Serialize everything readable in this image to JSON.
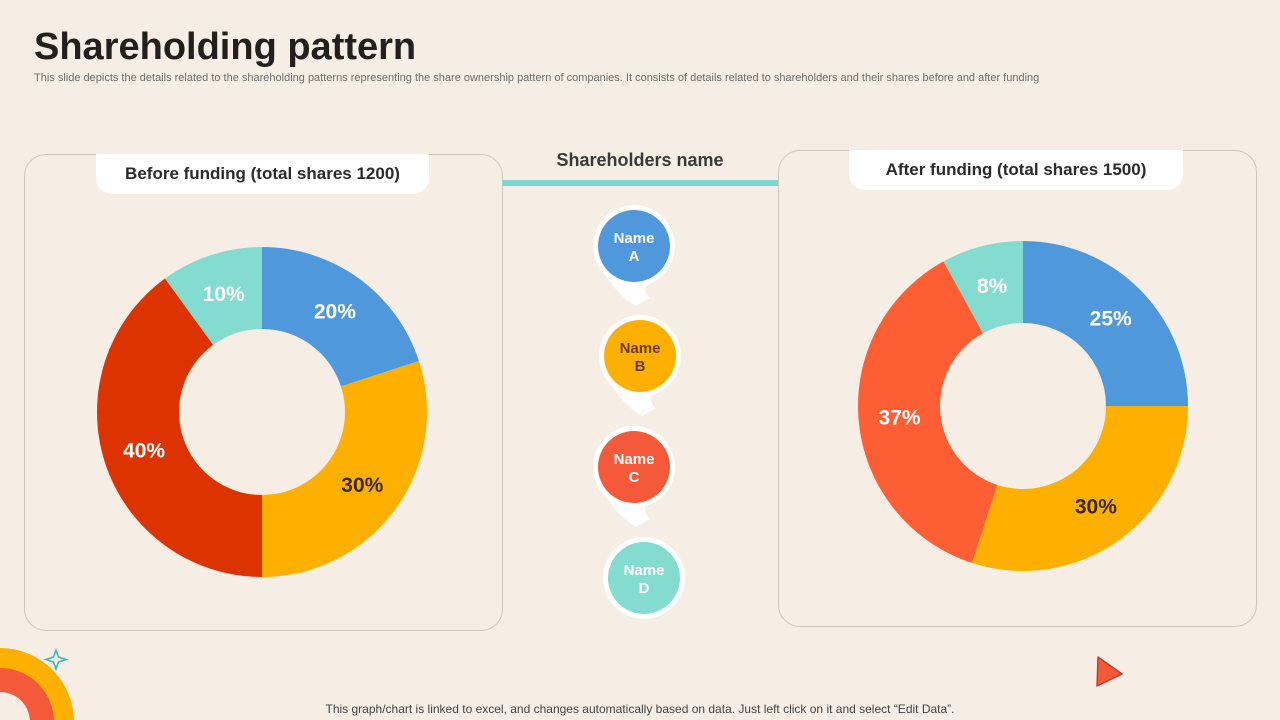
{
  "header": {
    "title": "Shareholding pattern",
    "subtitle": "This slide depicts the details related to the shareholding patterns representing the share ownership pattern of companies. It consists of details related to shareholders and their shares before and after funding"
  },
  "legend": {
    "title": "Shareholders name",
    "items": [
      {
        "line1": "Name",
        "line2": "A",
        "color": "#4f98dc",
        "text_color": "#ffffff"
      },
      {
        "line1": "Name",
        "line2": "B",
        "color": "#fdb000",
        "text_color": "#6b3a00"
      },
      {
        "line1": "Name",
        "line2": "C",
        "color": "#f4593a",
        "text_color": "#ffffff"
      },
      {
        "line1": "Name",
        "line2": "D",
        "color": "#84dcd0",
        "text_color": "#ffffff"
      }
    ]
  },
  "chart_data": [
    {
      "type": "pie",
      "title": "Before funding (total shares 1200)",
      "categories": [
        "Name A",
        "Name B",
        "Name C",
        "Name D"
      ],
      "values": [
        20,
        30,
        40,
        10
      ],
      "labels": [
        "20%",
        "30%",
        "40%",
        "10%"
      ],
      "colors": [
        "#4f98dc",
        "#fdb000",
        "#dc3300",
        "#84dcd0"
      ],
      "label_colors": [
        "#ffffff",
        "#3a2a10",
        "#ffffff",
        "#ffffff"
      ]
    },
    {
      "type": "pie",
      "title": "After funding (total shares 1500)",
      "categories": [
        "Name A",
        "Name B",
        "Name C",
        "Name D"
      ],
      "values": [
        25,
        30,
        37,
        8
      ],
      "labels": [
        "25%",
        "30%",
        "37%",
        "8%"
      ],
      "colors": [
        "#4f98dc",
        "#fdb000",
        "#fe5e33",
        "#84dcd0"
      ],
      "label_colors": [
        "#ffffff",
        "#3a2a10",
        "#ffffff",
        "#ffffff"
      ]
    }
  ],
  "footer": "This graph/chart is linked to excel,  and changes automatically based on data. Just left click on it and select “Edit Data”."
}
